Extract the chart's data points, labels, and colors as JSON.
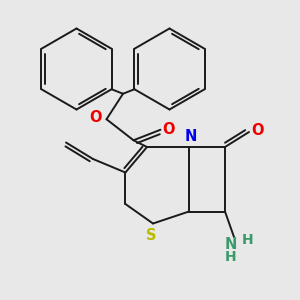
{
  "background_color": "#e8e8e8",
  "line_color": "#1a1a1a",
  "bond_lw": 1.4,
  "atom_colors": {
    "O": "#ee0000",
    "N": "#0000ee",
    "S": "#bbbb00",
    "NH2": "#3a9a6a"
  },
  "font_size": 10.5,
  "xlim": [
    0,
    10
  ],
  "ylim": [
    0,
    10
  ]
}
